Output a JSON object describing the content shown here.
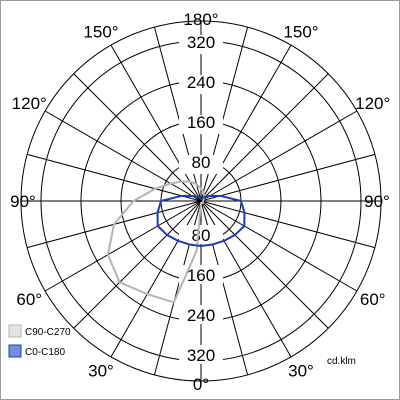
{
  "chart_data": {
    "type": "polar",
    "unit": "cd.klm",
    "r_ticks": [
      80,
      160,
      240,
      320
    ],
    "r_max": 360,
    "ring_label_values": [
      "80",
      "160",
      "240",
      "320"
    ],
    "angle_labels": [
      {
        "deg": 180,
        "text": "180°"
      },
      {
        "deg": 150,
        "text": "150°"
      },
      {
        "deg": 120,
        "text": "120°"
      },
      {
        "deg": 90,
        "text": "90°"
      },
      {
        "deg": 60,
        "text": "60°"
      },
      {
        "deg": 30,
        "text": "30°"
      },
      {
        "deg": 0,
        "text": "0°"
      },
      {
        "deg": -30,
        "text": "30°"
      },
      {
        "deg": -60,
        "text": "60°"
      },
      {
        "deg": -90,
        "text": "90°"
      },
      {
        "deg": -120,
        "text": "120°"
      },
      {
        "deg": -150,
        "text": "150°"
      }
    ],
    "spoke_step_deg": 15,
    "series": [
      {
        "name": "C90-C270",
        "color": "#b4b4b4",
        "points": [
          [
            -15,
            210
          ],
          [
            -30,
            215
          ],
          [
            -45,
            230
          ],
          [
            -60,
            215
          ],
          [
            -75,
            180
          ],
          [
            -90,
            135
          ],
          [
            -105,
            95
          ],
          [
            -120,
            70
          ],
          [
            -135,
            55
          ],
          [
            -150,
            45
          ],
          [
            -165,
            35
          ],
          [
            180,
            25
          ],
          [
            165,
            18
          ],
          [
            150,
            12
          ],
          [
            135,
            8
          ],
          [
            120,
            6
          ],
          [
            105,
            5
          ],
          [
            90,
            4
          ],
          [
            75,
            4
          ],
          [
            60,
            5
          ],
          [
            45,
            6
          ],
          [
            30,
            5
          ],
          [
            15,
            4
          ],
          [
            0,
            4
          ],
          [
            -5,
            100
          ]
        ]
      },
      {
        "name": "C0-C180",
        "color": "#1e3cb4",
        "points": [
          [
            -90,
            80
          ],
          [
            -75,
            90
          ],
          [
            -60,
            100
          ],
          [
            -45,
            96
          ],
          [
            -30,
            92
          ],
          [
            -15,
            90
          ],
          [
            0,
            90
          ],
          [
            15,
            90
          ],
          [
            30,
            92
          ],
          [
            45,
            96
          ],
          [
            60,
            100
          ],
          [
            75,
            90
          ],
          [
            90,
            80
          ],
          [
            105,
            40
          ],
          [
            120,
            20
          ],
          [
            135,
            12
          ],
          [
            150,
            8
          ],
          [
            165,
            5
          ],
          [
            180,
            4
          ],
          [
            -165,
            5
          ],
          [
            -150,
            8
          ],
          [
            -135,
            12
          ],
          [
            -120,
            20
          ],
          [
            -105,
            40
          ]
        ]
      }
    ]
  },
  "legend": [
    {
      "label": "C90-C270",
      "swatch": "#e4e4e4",
      "border": "#b4b4b4"
    },
    {
      "label": "C0-C180",
      "swatch": "#6f8fd8",
      "border": "#1e3cb4"
    }
  ]
}
